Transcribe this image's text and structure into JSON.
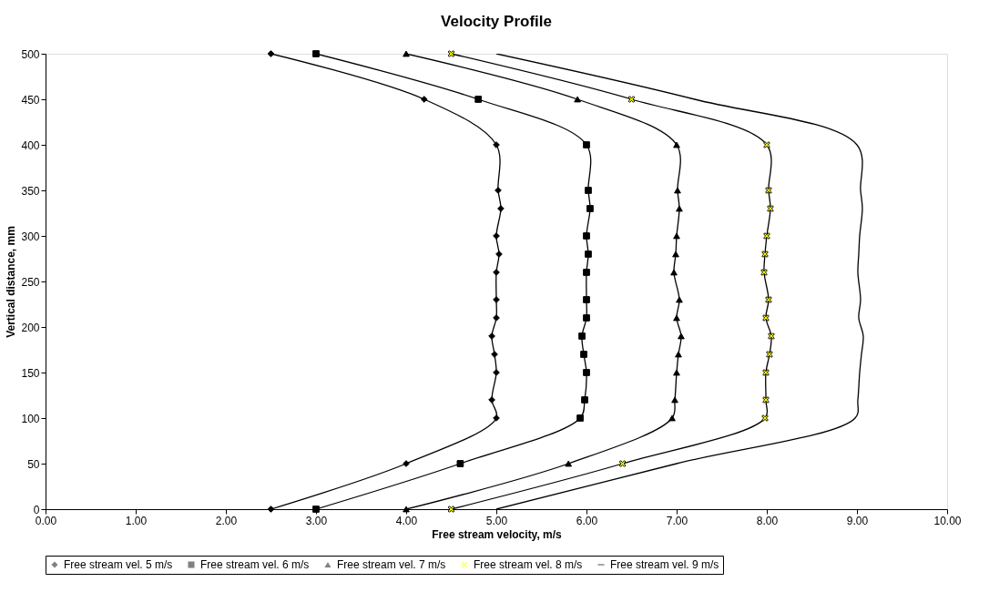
{
  "chart_data": {
    "type": "line",
    "title": "Velocity Profile",
    "xlabel": "Free stream velocity, m/s",
    "ylabel": "Vertical distance, mm",
    "xlim": [
      0,
      10
    ],
    "xticks": [
      {
        "value": 0,
        "label": "0.00"
      },
      {
        "value": 1,
        "label": "1.00"
      },
      {
        "value": 2,
        "label": "2.00"
      },
      {
        "value": 3,
        "label": "3.00"
      },
      {
        "value": 4,
        "label": "4.00"
      },
      {
        "value": 5,
        "label": "5.00"
      },
      {
        "value": 6,
        "label": "6.00"
      },
      {
        "value": 7,
        "label": "7.00"
      },
      {
        "value": 8,
        "label": "8.00"
      },
      {
        "value": 9,
        "label": "9.00"
      },
      {
        "value": 10,
        "label": "10.00"
      }
    ],
    "ylim": [
      0,
      500
    ],
    "yticks": [
      0,
      50,
      100,
      150,
      200,
      250,
      300,
      350,
      400,
      450,
      500
    ],
    "grid": false,
    "legend": "bottom",
    "line_style": "solid",
    "series": [
      {
        "name": "Free stream vel. 5 m/s",
        "color": "#000000",
        "marker": "diamond",
        "x": [
          2.5,
          4.2,
          5.0,
          5.02,
          5.05,
          5.0,
          5.03,
          5.0,
          5.0,
          5.0,
          4.95,
          4.98,
          5.0,
          4.95,
          5.0,
          4.0,
          2.5
        ],
        "values": [
          500,
          450,
          400,
          350,
          330,
          300,
          280,
          260,
          230,
          210,
          190,
          170,
          150,
          120,
          100,
          50,
          0
        ]
      },
      {
        "name": "Free stream vel. 6 m/s",
        "color": "#000000",
        "marker": "square",
        "x": [
          3.0,
          4.8,
          6.0,
          6.02,
          6.04,
          6.0,
          6.02,
          6.0,
          6.0,
          6.0,
          5.95,
          5.97,
          6.0,
          5.98,
          5.93,
          4.6,
          3.0
        ],
        "values": [
          500,
          450,
          400,
          350,
          330,
          300,
          280,
          260,
          230,
          210,
          190,
          170,
          150,
          120,
          100,
          50,
          0
        ]
      },
      {
        "name": "Free stream vel. 7 m/s",
        "color": "#000000",
        "marker": "triangle",
        "x": [
          4.0,
          5.9,
          7.0,
          7.01,
          7.03,
          7.0,
          6.99,
          6.97,
          7.03,
          7.0,
          7.05,
          7.02,
          7.0,
          6.98,
          6.95,
          5.8,
          4.0
        ],
        "values": [
          500,
          450,
          400,
          350,
          330,
          300,
          280,
          260,
          230,
          210,
          190,
          170,
          150,
          120,
          100,
          50,
          0
        ]
      },
      {
        "name": "Free stream vel. 8 m/s",
        "color": "#000000",
        "colors": [
          "#ffff00",
          "#ffff00",
          "#ffff00",
          "#ffff00",
          "#ffff00",
          "#ffff00",
          "#ffff00",
          "#ffff00",
          "#ffff00",
          "#ffff00",
          "#ffff00",
          "#ffff00",
          "#ffff00",
          "#ffff00",
          "#ffff00",
          "#ffff00",
          "#ffff00"
        ],
        "marker": "cross",
        "x": [
          4.5,
          6.5,
          8.0,
          8.02,
          8.04,
          8.0,
          7.98,
          7.97,
          8.02,
          7.99,
          8.05,
          8.03,
          7.99,
          7.99,
          7.98,
          6.4,
          4.5
        ],
        "values": [
          500,
          450,
          400,
          350,
          330,
          300,
          280,
          260,
          230,
          210,
          190,
          170,
          150,
          120,
          100,
          50,
          0
        ]
      },
      {
        "name": "Free stream vel. 9 m/s",
        "color": "#000000",
        "marker": "none",
        "x": [
          5.0,
          7.2,
          9.0,
          9.04,
          9.06,
          9.03,
          9.02,
          9.01,
          9.04,
          9.02,
          9.07,
          9.05,
          9.03,
          9.01,
          8.98,
          7.0,
          5.0
        ],
        "values": [
          500,
          450,
          400,
          350,
          330,
          300,
          280,
          260,
          230,
          210,
          190,
          170,
          150,
          120,
          100,
          50,
          0
        ]
      }
    ]
  }
}
